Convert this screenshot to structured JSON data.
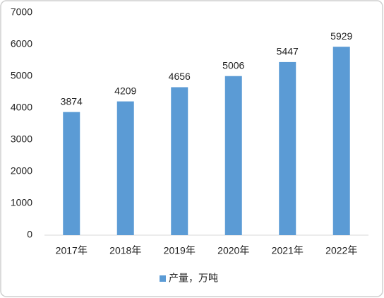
{
  "chart_data": {
    "type": "bar",
    "categories": [
      "2017年",
      "2018年",
      "2019年",
      "2020年",
      "2021年",
      "2022年"
    ],
    "series": [
      {
        "name": "产量，万吨",
        "color": "#5b9bd5",
        "values": [
          3874,
          4209,
          4656,
          5006,
          5447,
          5929
        ]
      }
    ],
    "ylim": [
      0,
      7000
    ],
    "yticks": [
      0,
      1000,
      2000,
      3000,
      4000,
      5000,
      6000,
      7000
    ],
    "grid": false,
    "legend": "bottom",
    "data_labels": true
  }
}
